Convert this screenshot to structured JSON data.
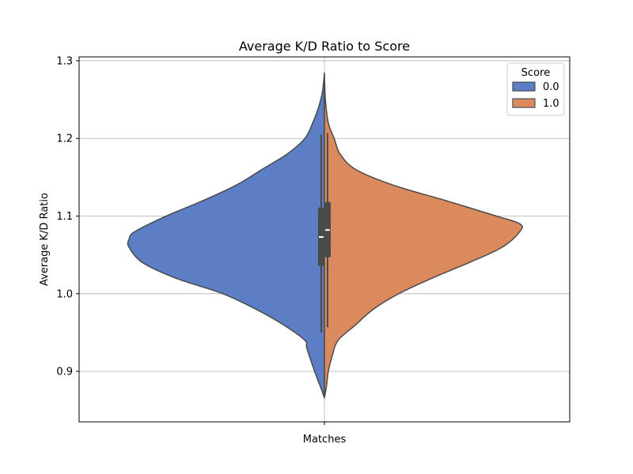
{
  "chart_data": {
    "type": "violin",
    "title": "Average K/D Ratio to Score",
    "xlabel": "",
    "ylabel": "Average K/D Ratio",
    "categories": [
      "Matches"
    ],
    "ylim": [
      0.835,
      1.305
    ],
    "yticks": [
      0.9,
      1.0,
      1.1,
      1.2,
      1.3
    ],
    "ytick_labels": [
      "0.9",
      "1.0",
      "1.1",
      "1.2",
      "1.3"
    ],
    "grid": true,
    "split": true,
    "legend": {
      "title": "Score",
      "position": "top-right"
    },
    "series": [
      {
        "name": "0.0",
        "color": "#5b7ec4",
        "side": "left",
        "density": [
          [
            0.866,
            0.0
          ],
          [
            0.88,
            0.02
          ],
          [
            0.9,
            0.05
          ],
          [
            0.93,
            0.09
          ],
          [
            0.94,
            0.1
          ],
          [
            0.96,
            0.21
          ],
          [
            0.98,
            0.35
          ],
          [
            1.0,
            0.52
          ],
          [
            1.02,
            0.76
          ],
          [
            1.04,
            0.93
          ],
          [
            1.06,
            1.0
          ],
          [
            1.07,
            1.0
          ],
          [
            1.08,
            0.97
          ],
          [
            1.1,
            0.81
          ],
          [
            1.12,
            0.62
          ],
          [
            1.14,
            0.45
          ],
          [
            1.16,
            0.32
          ],
          [
            1.18,
            0.19
          ],
          [
            1.2,
            0.1
          ],
          [
            1.22,
            0.06
          ],
          [
            1.24,
            0.03
          ],
          [
            1.26,
            0.01
          ],
          [
            1.284,
            0.0
          ]
        ],
        "whisker": [
          0.95,
          1.205
        ],
        "q1": 1.036,
        "median": 1.073,
        "q3": 1.111
      },
      {
        "name": "1.0",
        "color": "#db8a5e",
        "side": "right",
        "density": [
          [
            0.866,
            0.0
          ],
          [
            0.88,
            0.01
          ],
          [
            0.9,
            0.02
          ],
          [
            0.92,
            0.04
          ],
          [
            0.94,
            0.07
          ],
          [
            0.96,
            0.16
          ],
          [
            0.98,
            0.25
          ],
          [
            1.0,
            0.38
          ],
          [
            1.02,
            0.55
          ],
          [
            1.04,
            0.74
          ],
          [
            1.06,
            0.91
          ],
          [
            1.08,
            1.0
          ],
          [
            1.09,
            1.0
          ],
          [
            1.1,
            0.88
          ],
          [
            1.12,
            0.62
          ],
          [
            1.14,
            0.35
          ],
          [
            1.16,
            0.16
          ],
          [
            1.18,
            0.08
          ],
          [
            1.2,
            0.05
          ],
          [
            1.22,
            0.02
          ],
          [
            1.25,
            0.005
          ],
          [
            1.284,
            0.0
          ]
        ],
        "whisker": [
          0.957,
          1.207
        ],
        "q1": 1.047,
        "median": 1.082,
        "q3": 1.118
      }
    ]
  }
}
